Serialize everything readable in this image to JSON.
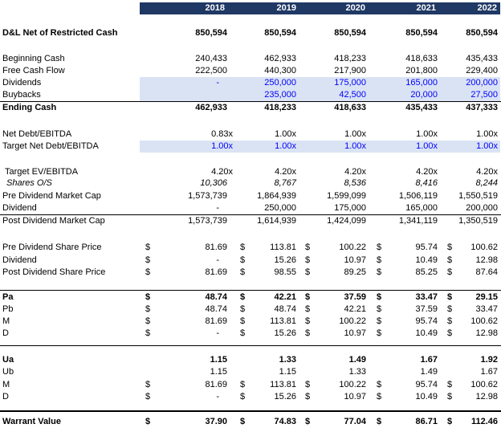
{
  "header": {
    "years": [
      "2018",
      "2019",
      "2020",
      "2021",
      "2022"
    ]
  },
  "rows": {
    "dl_net": {
      "label": "D&L Net of Restricted Cash",
      "values": [
        "850,594",
        "850,594",
        "850,594",
        "850,594",
        "850,594"
      ]
    },
    "begin_cash": {
      "label": "Beginning Cash",
      "values": [
        "240,433",
        "462,933",
        "418,233",
        "418,633",
        "435,433"
      ]
    },
    "fcf": {
      "label": "Free Cash Flow",
      "values": [
        "222,500",
        "440,300",
        "217,900",
        "201,800",
        "229,400"
      ]
    },
    "dividends": {
      "label": "Dividends",
      "values": [
        "-",
        "250,000",
        "175,000",
        "165,000",
        "200,000"
      ]
    },
    "buybacks": {
      "label": "Buybacks",
      "values": [
        "",
        "235,000",
        "42,500",
        "20,000",
        "27,500"
      ]
    },
    "ending_cash": {
      "label": "Ending Cash",
      "values": [
        "462,933",
        "418,233",
        "418,633",
        "435,433",
        "437,333"
      ]
    },
    "net_debt": {
      "label": "Net Debt/EBITDA",
      "values": [
        "0.83x",
        "1.00x",
        "1.00x",
        "1.00x",
        "1.00x"
      ]
    },
    "target_net_debt": {
      "label": "Target Net Debt/EBITDA",
      "values": [
        "1.00x",
        "1.00x",
        "1.00x",
        "1.00x",
        "1.00x"
      ]
    },
    "target_ev": {
      "label": "Target EV/EBITDA",
      "values": [
        "4.20x",
        "4.20x",
        "4.20x",
        "4.20x",
        "4.20x"
      ]
    },
    "shares": {
      "label": "Shares O/S",
      "values": [
        "10,306",
        "8,767",
        "8,536",
        "8,416",
        "8,244"
      ]
    },
    "pre_div_mcap": {
      "label": "Pre Dividend Market Cap",
      "values": [
        "1,573,739",
        "1,864,939",
        "1,599,099",
        "1,506,119",
        "1,550,519"
      ]
    },
    "dividend_mc": {
      "label": "Dividend",
      "values": [
        "-",
        "250,000",
        "175,000",
        "165,000",
        "200,000"
      ]
    },
    "post_div_mcap": {
      "label": "Post Dividend Market Cap",
      "values": [
        "1,573,739",
        "1,614,939",
        "1,424,099",
        "1,341,119",
        "1,350,519"
      ]
    },
    "pre_div_price": {
      "label": "Pre Dividend Share Price",
      "values": [
        "81.69",
        "113.81",
        "100.22",
        "95.74",
        "100.62"
      ]
    },
    "dividend_ps": {
      "label": "Dividend",
      "values": [
        "-",
        "15.26",
        "10.97",
        "10.49",
        "12.98"
      ]
    },
    "post_div_price": {
      "label": "Post Dividend Share Price",
      "values": [
        "81.69",
        "98.55",
        "89.25",
        "85.25",
        "87.64"
      ]
    },
    "pa": {
      "label": "Pa",
      "values": [
        "48.74",
        "42.21",
        "37.59",
        "33.47",
        "29.15"
      ]
    },
    "pb": {
      "label": "Pb",
      "values": [
        "48.74",
        "48.74",
        "42.21",
        "37.59",
        "33.47"
      ]
    },
    "m1": {
      "label": "M",
      "values": [
        "81.69",
        "113.81",
        "100.22",
        "95.74",
        "100.62"
      ]
    },
    "d1": {
      "label": "D",
      "values": [
        "-",
        "15.26",
        "10.97",
        "10.49",
        "12.98"
      ]
    },
    "ua": {
      "label": "Ua",
      "values": [
        "1.15",
        "1.33",
        "1.49",
        "1.67",
        "1.92"
      ]
    },
    "ub": {
      "label": "Ub",
      "values": [
        "1.15",
        "1.15",
        "1.33",
        "1.49",
        "1.67"
      ]
    },
    "m2": {
      "label": "M",
      "values": [
        "81.69",
        "113.81",
        "100.22",
        "95.74",
        "100.62"
      ]
    },
    "d2": {
      "label": "D",
      "values": [
        "-",
        "15.26",
        "10.97",
        "10.49",
        "12.98"
      ]
    },
    "warrant": {
      "label": "Warrant Value",
      "values": [
        "37.90",
        "74.83",
        "77.04",
        "86.71",
        "112.46"
      ]
    }
  },
  "currency_symbol": "$",
  "colors": {
    "header_bg": "#1f3864",
    "shade": "#dae3f3",
    "input_blue": "#0000ff"
  }
}
